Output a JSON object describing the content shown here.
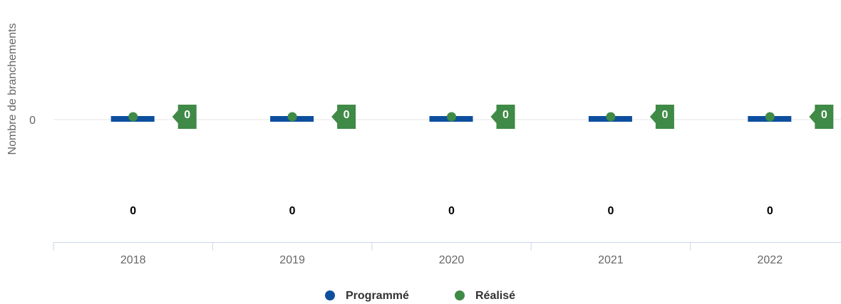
{
  "chart_data": {
    "type": "bar",
    "y_axis_title": "Nombre de branchements",
    "categories": [
      "2018",
      "2019",
      "2020",
      "2021",
      "2022"
    ],
    "series": [
      {
        "name": "Programmé",
        "color": "#0d4f9e",
        "values": [
          0,
          0,
          0,
          0,
          0
        ]
      },
      {
        "name": "Réalisé",
        "color": "#3f8a46",
        "values": [
          0,
          0,
          0,
          0,
          0
        ]
      }
    ],
    "ylim": [
      -1,
      1
    ],
    "yticks": [
      0
    ],
    "grid": true,
    "legend": "bottom"
  }
}
